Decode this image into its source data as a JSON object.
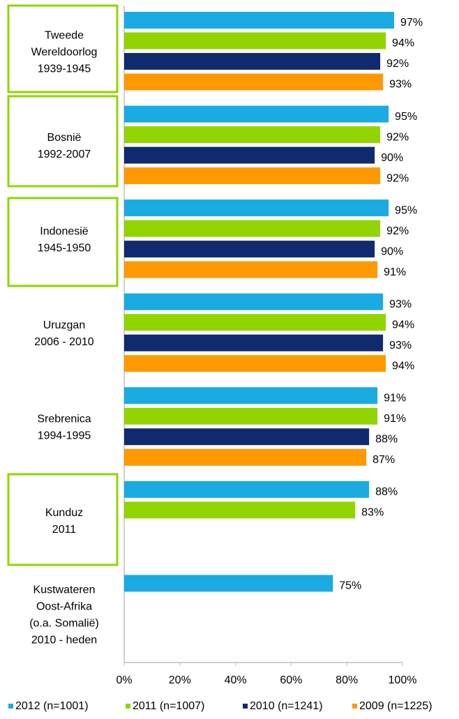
{
  "chart_data": {
    "type": "bar",
    "orientation": "horizontal",
    "categories": [
      [
        "Tweede",
        "Wereldoorlog",
        "1939-1945"
      ],
      [
        "Bosnië",
        "1992-2007"
      ],
      [
        "Indonesië",
        "1945-1950"
      ],
      [
        "Uruzgan",
        "2006 - 2010"
      ],
      [
        "Srebrenica",
        "1994-1995"
      ],
      [
        "Kunduz",
        "2011"
      ],
      [
        "Kustwateren",
        "Oost-Afrika",
        "(o.a. Somalië)",
        "2010 - heden"
      ]
    ],
    "series": [
      {
        "name": "2012 (n=1001)",
        "color": "#1aabe2",
        "values": [
          97,
          95,
          95,
          93,
          91,
          88,
          75
        ],
        "value_labels": [
          "97%",
          "95%",
          "95%",
          "93%",
          "91%",
          "88%",
          "75%"
        ]
      },
      {
        "name": "2011 (n=1007)",
        "color": "#92d400",
        "values": [
          94,
          92,
          92,
          94,
          91,
          83,
          null
        ],
        "value_labels": [
          "94%",
          "92%",
          "92%",
          "94%",
          "91%",
          "83%",
          null
        ]
      },
      {
        "name": "2010 (n=1241)",
        "color": "#0f2a6e",
        "values": [
          92,
          90,
          90,
          93,
          88,
          null,
          null
        ],
        "value_labels": [
          "92%",
          "90%",
          "90%",
          "93%",
          "88%",
          null,
          null
        ]
      },
      {
        "name": "2009 (n=1225)",
        "color": "#ff9900",
        "values": [
          93,
          92,
          91,
          94,
          87,
          null,
          null
        ],
        "value_labels": [
          "93%",
          "92%",
          "91%",
          "94%",
          "87%",
          null,
          null
        ]
      }
    ],
    "xlim": [
      0,
      100
    ],
    "xticks": [
      {
        "value": 0,
        "label": "0%"
      },
      {
        "value": 20,
        "label": "20%"
      },
      {
        "value": 40,
        "label": "40%"
      },
      {
        "value": 60,
        "label": "60%"
      },
      {
        "value": 80,
        "label": "80%"
      },
      {
        "value": 100,
        "label": "100%"
      }
    ],
    "grid": false,
    "legend": "bottom"
  }
}
